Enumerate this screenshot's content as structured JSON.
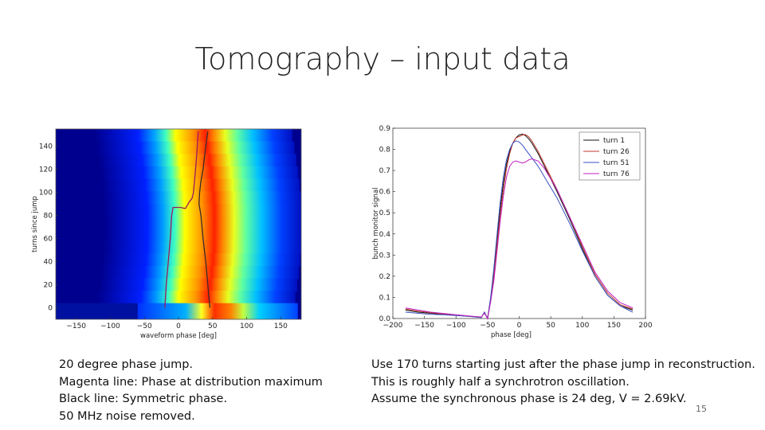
{
  "slide": {
    "title": "Tomography – input data",
    "left_notes": [
      "20 degree phase jump.",
      "Magenta line: Phase at distribution maximum",
      "Black line: Symmetric phase.",
      "50 MHz noise removed."
    ],
    "right_notes": [
      "Use 170 turns starting just after the phase jump in reconstruction.",
      "This is roughly half a synchrotron oscillation.",
      "Assume the synchronous phase is 24 deg, V = 2.69kV."
    ],
    "page_number": "15"
  },
  "chart_data": [
    {
      "type": "heatmap",
      "xlabel": "waveform phase [deg]",
      "ylabel": "turns since jump",
      "xlim": [
        -180,
        180
      ],
      "ylim": [
        -10,
        155
      ],
      "xticks": [
        "−150",
        "−100",
        "−50",
        "0",
        "50",
        "100",
        "150"
      ],
      "yticks": [
        "0",
        "20",
        "40",
        "60",
        "80",
        "100",
        "120",
        "140"
      ],
      "colormap": "jet",
      "series": [
        {
          "color": "#9b1b5a",
          "x": [
            -20,
            -18,
            -15,
            -12,
            -10,
            -8,
            -5,
            -3,
            -1,
            3,
            10,
            16,
            20,
            22,
            25,
            27,
            28,
            29
          ],
          "y": [
            0,
            20,
            40,
            60,
            80,
            87,
            87,
            87,
            87,
            87,
            86,
            92,
            95,
            100,
            120,
            135,
            145,
            153
          ]
        },
        {
          "color": "#3a2a2a",
          "x": [
            46,
            43,
            40,
            36,
            33,
            31,
            30,
            31,
            33,
            36,
            38,
            40,
            43
          ],
          "y": [
            0,
            20,
            40,
            60,
            80,
            87,
            90,
            100,
            110,
            120,
            130,
            140,
            153
          ]
        }
      ]
    },
    {
      "type": "line",
      "xlabel": "phase [deg]",
      "ylabel": "bunch monitor signal",
      "xlim": [
        -200,
        200
      ],
      "ylim": [
        0.0,
        0.9
      ],
      "xticks": [
        "−200",
        "−150",
        "−100",
        "−50",
        "0",
        "50",
        "100",
        "150",
        "200"
      ],
      "yticks": [
        "0.0",
        "0.1",
        "0.2",
        "0.3",
        "0.4",
        "0.5",
        "0.6",
        "0.7",
        "0.8",
        "0.9"
      ],
      "legend": "top-right",
      "series": [
        {
          "name": "turn 1",
          "color": "#111111",
          "x": [
            -180,
            -160,
            -140,
            -120,
            -100,
            -80,
            -60,
            -55,
            -50,
            -45,
            -40,
            -35,
            -30,
            -25,
            -20,
            -15,
            -10,
            -5,
            0,
            5,
            10,
            15,
            20,
            30,
            40,
            50,
            60,
            80,
            100,
            120,
            140,
            160,
            180
          ],
          "y": [
            0.04,
            0.03,
            0.025,
            0.02,
            0.015,
            0.01,
            0.005,
            0.03,
            0.0,
            0.1,
            0.22,
            0.38,
            0.52,
            0.64,
            0.73,
            0.79,
            0.83,
            0.855,
            0.868,
            0.872,
            0.865,
            0.85,
            0.83,
            0.78,
            0.72,
            0.66,
            0.6,
            0.47,
            0.33,
            0.2,
            0.11,
            0.06,
            0.04
          ]
        },
        {
          "name": "turn 26",
          "color": "#c0392b",
          "x": [
            -180,
            -160,
            -140,
            -120,
            -100,
            -80,
            -60,
            -55,
            -50,
            -45,
            -40,
            -35,
            -30,
            -25,
            -20,
            -15,
            -10,
            -5,
            0,
            5,
            10,
            15,
            20,
            30,
            40,
            50,
            60,
            80,
            100,
            120,
            140,
            160,
            180
          ],
          "y": [
            0.045,
            0.035,
            0.028,
            0.022,
            0.016,
            0.011,
            0.006,
            0.028,
            0.0,
            0.09,
            0.2,
            0.35,
            0.49,
            0.61,
            0.71,
            0.78,
            0.83,
            0.855,
            0.86,
            0.868,
            0.87,
            0.86,
            0.84,
            0.79,
            0.73,
            0.67,
            0.61,
            0.48,
            0.34,
            0.21,
            0.12,
            0.065,
            0.045
          ]
        },
        {
          "name": "turn 51",
          "color": "#3a4fc0",
          "x": [
            -180,
            -160,
            -140,
            -120,
            -100,
            -80,
            -60,
            -55,
            -50,
            -45,
            -40,
            -35,
            -30,
            -25,
            -20,
            -15,
            -10,
            -5,
            0,
            5,
            10,
            15,
            20,
            30,
            40,
            50,
            60,
            80,
            100,
            120,
            140,
            160,
            180
          ],
          "y": [
            0.03,
            0.025,
            0.02,
            0.018,
            0.014,
            0.01,
            0.005,
            0.03,
            0.0,
            0.1,
            0.24,
            0.4,
            0.55,
            0.67,
            0.75,
            0.8,
            0.83,
            0.84,
            0.835,
            0.82,
            0.8,
            0.78,
            0.76,
            0.72,
            0.67,
            0.62,
            0.57,
            0.45,
            0.32,
            0.2,
            0.11,
            0.06,
            0.03
          ]
        },
        {
          "name": "turn 76",
          "color": "#c020c0",
          "x": [
            -180,
            -160,
            -140,
            -120,
            -100,
            -80,
            -60,
            -55,
            -50,
            -45,
            -40,
            -35,
            -30,
            -25,
            -20,
            -15,
            -10,
            -5,
            0,
            5,
            10,
            15,
            20,
            30,
            40,
            50,
            60,
            80,
            100,
            120,
            140,
            160,
            180
          ],
          "y": [
            0.05,
            0.04,
            0.03,
            0.024,
            0.018,
            0.012,
            0.007,
            0.025,
            0.0,
            0.08,
            0.18,
            0.32,
            0.46,
            0.58,
            0.67,
            0.72,
            0.74,
            0.745,
            0.74,
            0.735,
            0.74,
            0.75,
            0.755,
            0.745,
            0.71,
            0.66,
            0.61,
            0.48,
            0.35,
            0.22,
            0.13,
            0.075,
            0.05
          ]
        }
      ]
    }
  ]
}
